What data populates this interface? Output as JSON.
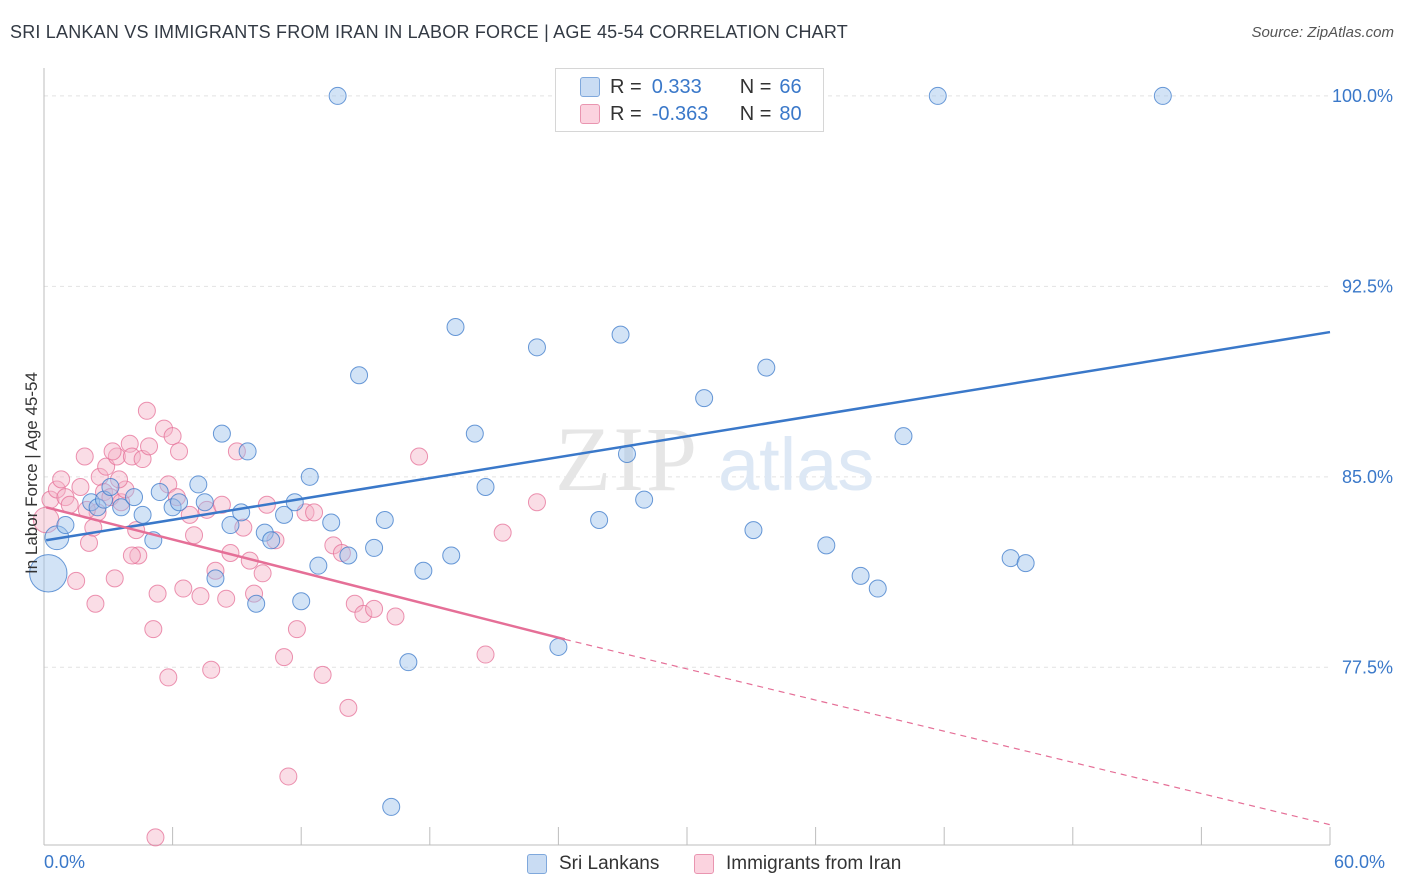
{
  "title": "SRI LANKAN VS IMMIGRANTS FROM IRAN IN LABOR FORCE | AGE 45-54 CORRELATION CHART",
  "source": "Source: ZipAtlas.com",
  "watermark": {
    "zip": "ZIP",
    "atlas": "atlas"
  },
  "legend": {
    "rows": [
      {
        "r_label": "R =",
        "r_value": "0.333",
        "n_label": "N =",
        "n_value": "66",
        "color": "#9cc0ea"
      },
      {
        "r_label": "R =",
        "r_value": "-0.363",
        "n_label": "N =",
        "n_value": "80",
        "color": "#f4b3c8"
      }
    ]
  },
  "colors": {
    "blue": "#3a78c9",
    "blue_fill": "#9cc0ea",
    "pink": "#e56f97",
    "pink_fill": "#f4b3c8",
    "tick_text": "#3a78c9"
  },
  "chart_data": {
    "type": "scatter",
    "title": "SRI LANKAN VS IMMIGRANTS FROM IRAN IN LABOR FORCE | AGE 45-54 CORRELATION CHART",
    "xlabel": "",
    "ylabel": "In Labor Force | Age 45-54",
    "xlim": [
      0,
      60
    ],
    "ylim": [
      70.5,
      101.1
    ],
    "x_tick_labels": [
      "0.0%",
      "60.0%"
    ],
    "y_ticks": [
      77.5,
      85.0,
      92.5,
      100.0
    ],
    "y_tick_labels": [
      "77.5%",
      "85.0%",
      "92.5%",
      "100.0%"
    ],
    "grid": true,
    "legend_position": "top-center",
    "series": [
      {
        "name": "Sri Lankans",
        "color": "#3a78c9",
        "trend": {
          "x": [
            0.1,
            60
          ],
          "y": [
            82.5,
            90.7
          ]
        },
        "points": [
          [
            0.2,
            81.2,
            2.2
          ],
          [
            0.6,
            82.6,
            1.4
          ],
          [
            1.0,
            83.1,
            1
          ],
          [
            2.2,
            84.0,
            1
          ],
          [
            2.5,
            83.8,
            1
          ],
          [
            2.8,
            84.1,
            1
          ],
          [
            3.1,
            84.6,
            1
          ],
          [
            3.6,
            83.8,
            1
          ],
          [
            4.2,
            84.2,
            1
          ],
          [
            4.6,
            83.5,
            1
          ],
          [
            5.1,
            82.5,
            1
          ],
          [
            5.4,
            84.4,
            1
          ],
          [
            6.0,
            83.8,
            1
          ],
          [
            6.3,
            84.0,
            1
          ],
          [
            7.2,
            84.7,
            1
          ],
          [
            7.5,
            84.0,
            1
          ],
          [
            8.0,
            81.0,
            1
          ],
          [
            8.3,
            86.7,
            1
          ],
          [
            8.7,
            83.1,
            1
          ],
          [
            9.2,
            83.6,
            1
          ],
          [
            9.5,
            86.0,
            1
          ],
          [
            9.9,
            80.0,
            1
          ],
          [
            10.3,
            82.8,
            1
          ],
          [
            10.6,
            82.5,
            1
          ],
          [
            11.2,
            83.5,
            1
          ],
          [
            11.7,
            84.0,
            1
          ],
          [
            12.0,
            80.1,
            1
          ],
          [
            12.4,
            85.0,
            1
          ],
          [
            12.8,
            81.5,
            1
          ],
          [
            13.4,
            83.2,
            1
          ],
          [
            13.7,
            100.0,
            1
          ],
          [
            14.2,
            81.9,
            1
          ],
          [
            14.7,
            89.0,
            1
          ],
          [
            15.4,
            82.2,
            1
          ],
          [
            15.9,
            83.3,
            1
          ],
          [
            16.2,
            72.0,
            1
          ],
          [
            17.0,
            77.7,
            1
          ],
          [
            17.7,
            81.3,
            1
          ],
          [
            19.0,
            81.9,
            1
          ],
          [
            19.2,
            90.9,
            1
          ],
          [
            20.1,
            86.7,
            1
          ],
          [
            20.6,
            84.6,
            1
          ],
          [
            23.0,
            90.1,
            1
          ],
          [
            24.0,
            78.3,
            1
          ],
          [
            25.4,
            100.0,
            1
          ],
          [
            25.9,
            83.3,
            1
          ],
          [
            26.9,
            90.6,
            1
          ],
          [
            27.2,
            85.9,
            1
          ],
          [
            28.0,
            84.1,
            1
          ],
          [
            30.8,
            88.1,
            1
          ],
          [
            33.1,
            82.9,
            1
          ],
          [
            33.7,
            89.3,
            1
          ],
          [
            34.1,
            100.0,
            1
          ],
          [
            36.5,
            82.3,
            1
          ],
          [
            38.1,
            81.1,
            1
          ],
          [
            38.9,
            80.6,
            1
          ],
          [
            40.1,
            86.6,
            1
          ],
          [
            41.7,
            100.0,
            1
          ],
          [
            45.1,
            81.8,
            1
          ],
          [
            45.8,
            81.6,
            1
          ],
          [
            52.2,
            100.0,
            1
          ]
        ]
      },
      {
        "name": "Immigrants from Iran",
        "color": "#e56f97",
        "trend": {
          "x": [
            0.1,
            24.3
          ],
          "y": [
            83.8,
            78.6
          ]
        },
        "trend_ext": {
          "x": [
            24.3,
            60
          ],
          "y": [
            78.6,
            71.3
          ]
        },
        "points": [
          [
            0.1,
            83.3,
            1.5
          ],
          [
            0.3,
            84.1,
            1
          ],
          [
            0.6,
            84.5,
            1
          ],
          [
            0.8,
            84.9,
            1
          ],
          [
            1.0,
            84.2,
            1
          ],
          [
            1.2,
            83.9,
            1
          ],
          [
            1.5,
            80.9,
            1
          ],
          [
            1.7,
            84.6,
            1
          ],
          [
            1.9,
            85.8,
            1
          ],
          [
            2.1,
            82.4,
            1
          ],
          [
            2.3,
            83.0,
            1
          ],
          [
            2.5,
            83.6,
            1
          ],
          [
            2.6,
            85.0,
            1
          ],
          [
            2.8,
            84.4,
            1
          ],
          [
            2.4,
            80.0,
            1
          ],
          [
            3.1,
            84.2,
            1
          ],
          [
            2.9,
            85.4,
            1
          ],
          [
            3.4,
            85.8,
            1
          ],
          [
            3.6,
            84.0,
            1
          ],
          [
            3.8,
            84.5,
            1
          ],
          [
            3.2,
            86.0,
            1
          ],
          [
            3.5,
            84.9,
            1
          ],
          [
            3.3,
            81.0,
            1
          ],
          [
            4.0,
            86.3,
            1
          ],
          [
            4.1,
            85.8,
            1
          ],
          [
            4.4,
            81.9,
            1
          ],
          [
            4.1,
            81.9,
            1
          ],
          [
            4.3,
            82.9,
            1
          ],
          [
            4.6,
            85.7,
            1
          ],
          [
            4.8,
            87.6,
            1
          ],
          [
            4.9,
            86.2,
            1
          ],
          [
            5.1,
            79.0,
            1
          ],
          [
            5.3,
            80.4,
            1
          ],
          [
            5.6,
            86.9,
            1
          ],
          [
            5.8,
            84.7,
            1
          ],
          [
            6.0,
            86.6,
            1
          ],
          [
            5.2,
            70.8,
            1
          ],
          [
            5.8,
            77.1,
            1
          ],
          [
            6.2,
            84.2,
            1
          ],
          [
            6.3,
            86.0,
            1
          ],
          [
            6.5,
            80.6,
            1
          ],
          [
            6.8,
            83.5,
            1
          ],
          [
            7.0,
            82.7,
            1
          ],
          [
            7.3,
            80.3,
            1
          ],
          [
            7.6,
            83.7,
            1
          ],
          [
            7.8,
            77.4,
            1
          ],
          [
            8.0,
            81.3,
            1
          ],
          [
            8.3,
            83.9,
            1
          ],
          [
            8.5,
            80.2,
            1
          ],
          [
            8.7,
            82.0,
            1
          ],
          [
            9.0,
            86.0,
            1
          ],
          [
            9.3,
            83.0,
            1
          ],
          [
            9.6,
            81.7,
            1
          ],
          [
            9.8,
            80.4,
            1
          ],
          [
            10.2,
            81.2,
            1
          ],
          [
            10.4,
            83.9,
            1
          ],
          [
            10.8,
            82.5,
            1
          ],
          [
            11.2,
            77.9,
            1
          ],
          [
            11.4,
            73.2,
            1
          ],
          [
            11.8,
            79.0,
            1
          ],
          [
            12.2,
            83.6,
            1
          ],
          [
            12.6,
            83.6,
            1
          ],
          [
            13.0,
            77.2,
            1
          ],
          [
            13.5,
            82.3,
            1
          ],
          [
            13.9,
            82.0,
            1
          ],
          [
            14.2,
            75.9,
            1
          ],
          [
            14.5,
            80.0,
            1
          ],
          [
            14.9,
            79.6,
            1
          ],
          [
            15.4,
            79.8,
            1
          ],
          [
            16.4,
            79.5,
            1
          ],
          [
            17.5,
            85.8,
            1
          ],
          [
            20.6,
            78.0,
            1
          ],
          [
            21.4,
            82.8,
            1
          ],
          [
            23.0,
            84.0,
            1
          ],
          [
            2.0,
            83.7,
            1
          ]
        ]
      }
    ]
  }
}
